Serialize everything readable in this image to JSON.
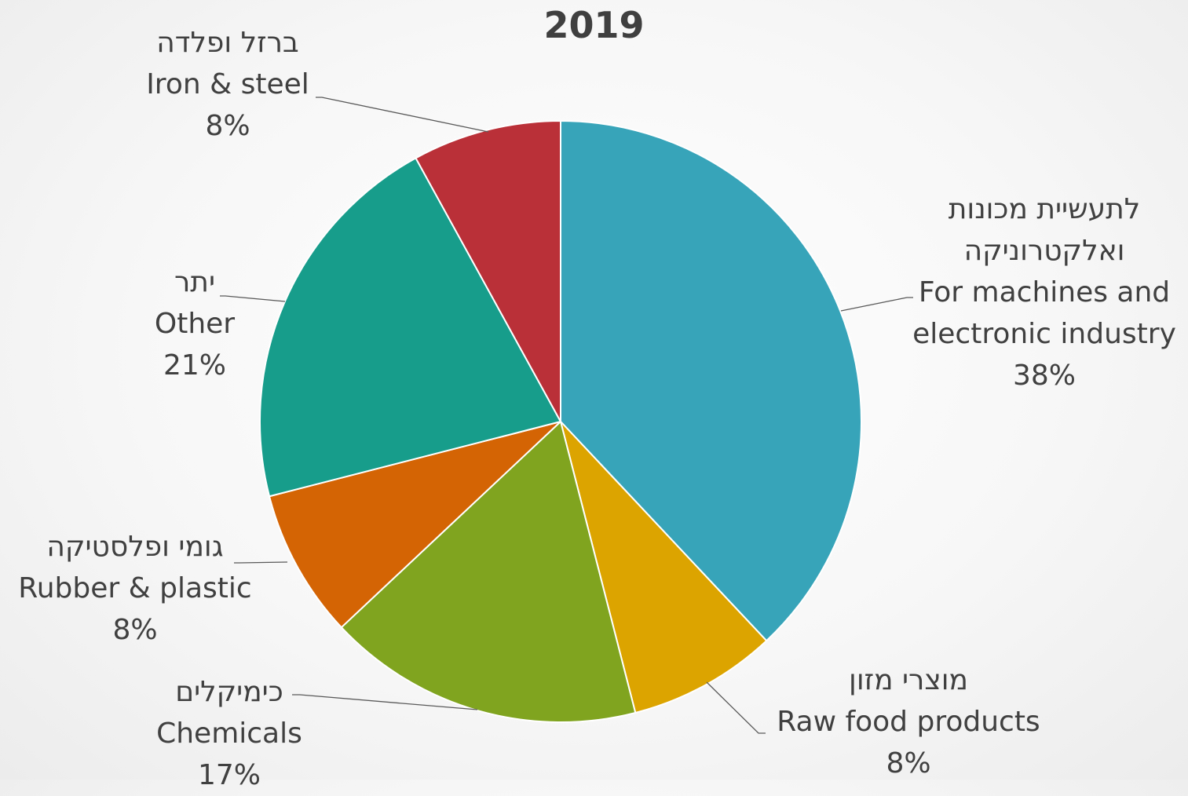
{
  "chart_data": {
    "type": "pie",
    "title": "2019",
    "slices": [
      {
        "label_he": "לתעשיית מכונות ואלקטרוניקה",
        "label_en": "For machines and electronic industry",
        "label_lines": [
          "לתעשיית מכונות",
          "ואלקטרוניקה",
          "For machines and",
          "electronic industry"
        ],
        "value": 38,
        "percent_label": "38%",
        "color": "#37a4b9"
      },
      {
        "label_he": "מוצרי מזון",
        "label_en": "Raw food products",
        "label_lines": [
          "מוצרי מזון",
          "Raw food products"
        ],
        "value": 8,
        "percent_label": "8%",
        "color": "#dca400"
      },
      {
        "label_he": "כימיקלים",
        "label_en": "Chemicals",
        "label_lines": [
          "כימיקלים",
          "Chemicals"
        ],
        "value": 17,
        "percent_label": "17%",
        "color": "#80a41f"
      },
      {
        "label_he": "גומי ופלסטיקה",
        "label_en": "Rubber & plastic",
        "label_lines": [
          "גומי ופלסטיקה",
          "Rubber & plastic"
        ],
        "value": 8,
        "percent_label": "8%",
        "color": "#d46404"
      },
      {
        "label_he": "יתר",
        "label_en": "Other",
        "label_lines": [
          "יתר",
          "Other"
        ],
        "value": 21,
        "percent_label": "21%",
        "color": "#179d8b"
      },
      {
        "label_he": "ברזל ופלדה",
        "label_en": "Iron & steel",
        "label_lines": [
          "ברזל ופלדה",
          "Iron & steel"
        ],
        "value": 8,
        "percent_label": "8%",
        "color": "#ba3038"
      }
    ],
    "start_angle_deg": 0,
    "direction": "clockwise",
    "legend": "none",
    "data_labels": "outside with leader lines"
  }
}
